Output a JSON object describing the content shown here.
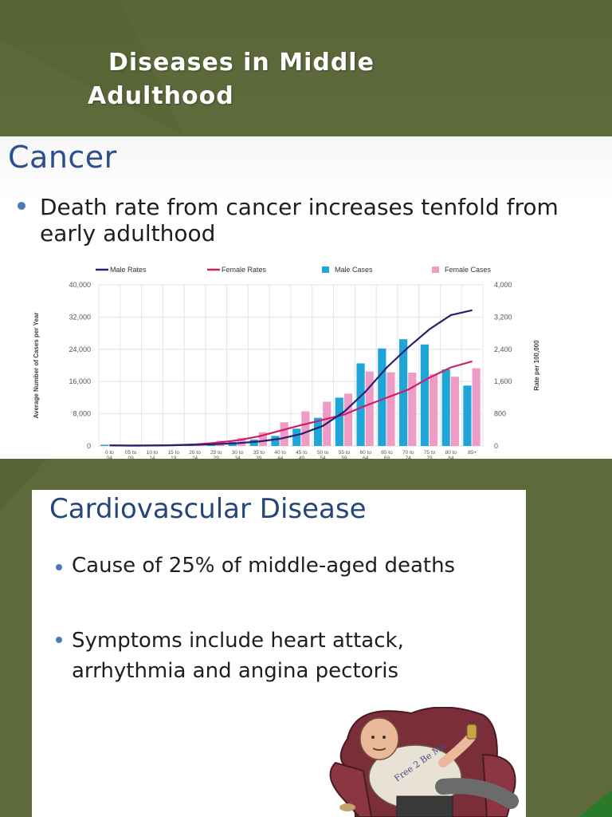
{
  "slide": {
    "title_line1": "Diseases in Middle",
    "title_line2": "Adulthood"
  },
  "cancer": {
    "heading": "Cancer",
    "bullet": "Death rate from cancer increases tenfold from early adulthood"
  },
  "cardio": {
    "heading": "Cardiovascular Disease",
    "bullets": [
      "Cause of 25% of middle-aged deaths",
      "Symptoms include heart attack, arrhythmia and angina pectoris"
    ],
    "illustration_icon": "man-on-couch-illustration",
    "illustration_text": "Free 2 Be Me"
  },
  "colors": {
    "background": "#5f6a3c",
    "heading_blue": "#2a4f8a",
    "male_rates": "#2b1f6e",
    "female_rates": "#cc1f6a",
    "male_cases": "#1ea6d9",
    "female_cases": "#ee9bc6"
  },
  "chart_data": {
    "type": "bar",
    "legend_position": "top",
    "grid": true,
    "ylabel": "Average Number of Cases per Year",
    "ylabel_right": "Rate per 100,000",
    "ylim": [
      0,
      40000
    ],
    "ylim_right": [
      0,
      4000
    ],
    "yticks": [
      "0",
      "8,000",
      "16,000",
      "24,000",
      "32,000",
      "40,000"
    ],
    "yticks_right": [
      "0",
      "800",
      "1,600",
      "2,400",
      "3,200",
      "4,000"
    ],
    "categories": [
      "0 to 04",
      "05 to 09",
      "10 to 14",
      "15 to 19",
      "20 to 24",
      "25 to 29",
      "30 to 34",
      "35 to 39",
      "40 to 44",
      "45 to 49",
      "50 to 54",
      "55 to 59",
      "60 to 64",
      "65 to 69",
      "70 to 74",
      "75 to 79",
      "80 to 84",
      "85+"
    ],
    "series": [
      {
        "name": "Male Cases",
        "kind": "bar",
        "axis": "left",
        "values": [
          300,
          100,
          150,
          250,
          400,
          700,
          1000,
          1600,
          2500,
          4300,
          7000,
          12000,
          20500,
          24200,
          26500,
          25200,
          19000,
          15000
        ]
      },
      {
        "name": "Female Cases",
        "kind": "bar",
        "axis": "left",
        "values": [
          250,
          100,
          150,
          300,
          600,
          1300,
          2000,
          3400,
          5900,
          8600,
          11000,
          13000,
          18500,
          18300,
          18200,
          17800,
          17200,
          19300
        ]
      },
      {
        "name": "Male Rates",
        "kind": "line",
        "axis": "right",
        "values": [
          15,
          10,
          12,
          20,
          30,
          45,
          70,
          110,
          180,
          300,
          500,
          850,
          1350,
          1950,
          2450,
          2900,
          3250,
          3370
        ]
      },
      {
        "name": "Female Rates",
        "kind": "line",
        "axis": "right",
        "values": [
          14,
          10,
          12,
          20,
          40,
          80,
          140,
          240,
          380,
          520,
          650,
          780,
          1000,
          1200,
          1400,
          1700,
          1950,
          2100
        ]
      }
    ]
  }
}
